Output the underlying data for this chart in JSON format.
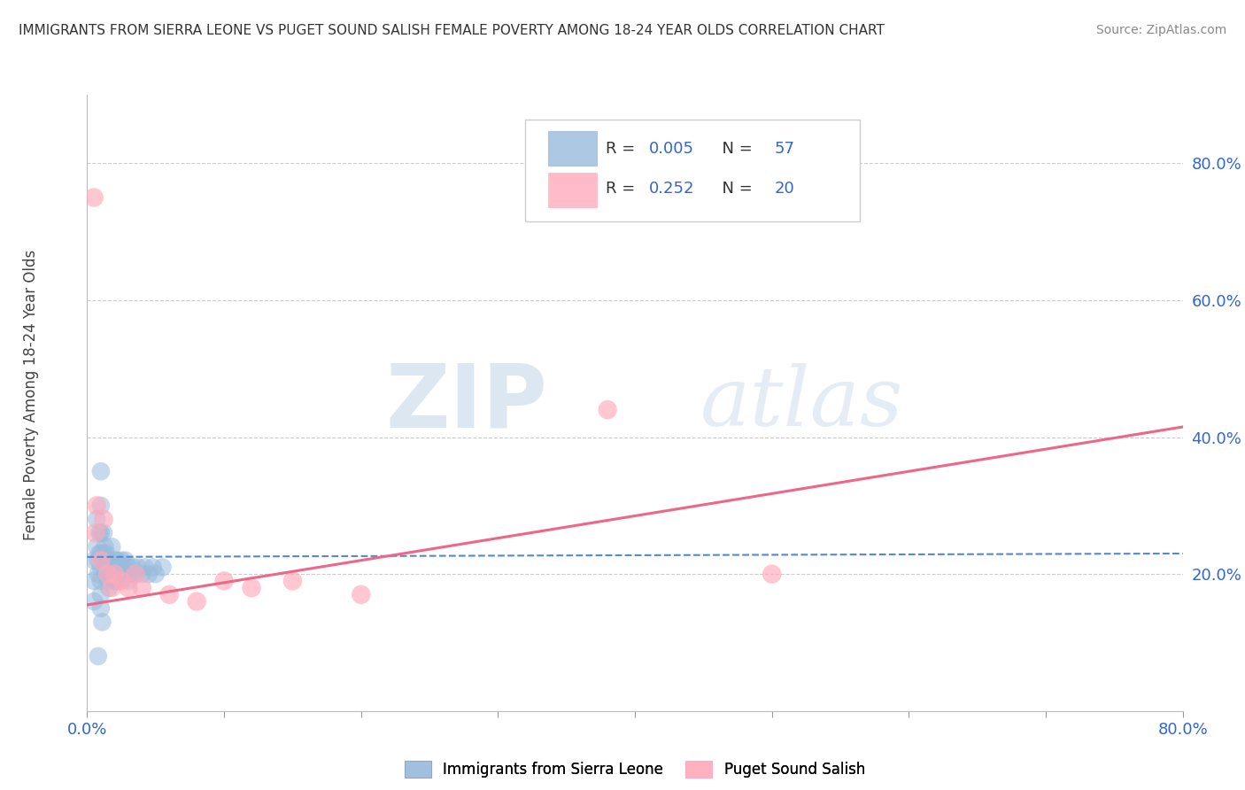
{
  "title": "IMMIGRANTS FROM SIERRA LEONE VS PUGET SOUND SALISH FEMALE POVERTY AMONG 18-24 YEAR OLDS CORRELATION CHART",
  "source": "Source: ZipAtlas.com",
  "ylabel": "Female Poverty Among 18-24 Year Olds",
  "xlim": [
    0.0,
    0.8
  ],
  "ylim": [
    0.0,
    0.9
  ],
  "ytick_positions": [
    0.2,
    0.4,
    0.6,
    0.8
  ],
  "ytick_labels": [
    "20.0%",
    "40.0%",
    "60.0%",
    "80.0%"
  ],
  "legend1_R": "0.005",
  "legend1_N": "57",
  "legend2_R": "0.252",
  "legend2_N": "20",
  "blue_color": "#99bbdd",
  "pink_color": "#ffaabb",
  "blue_line_color": "#5588cc",
  "pink_line_color": "#ee6688",
  "watermark_zip": "ZIP",
  "watermark_atlas": "atlas",
  "blue_scatter_x": [
    0.005,
    0.005,
    0.005,
    0.007,
    0.007,
    0.008,
    0.008,
    0.009,
    0.009,
    0.01,
    0.01,
    0.01,
    0.01,
    0.01,
    0.01,
    0.01,
    0.01,
    0.012,
    0.012,
    0.012,
    0.013,
    0.013,
    0.014,
    0.014,
    0.015,
    0.015,
    0.016,
    0.016,
    0.017,
    0.018,
    0.018,
    0.019,
    0.02,
    0.02,
    0.021,
    0.022,
    0.022,
    0.023,
    0.024,
    0.025,
    0.026,
    0.027,
    0.028,
    0.03,
    0.03,
    0.032,
    0.033,
    0.035,
    0.037,
    0.04,
    0.042,
    0.045,
    0.048,
    0.05,
    0.055,
    0.008,
    0.011
  ],
  "blue_scatter_y": [
    0.22,
    0.19,
    0.16,
    0.28,
    0.24,
    0.22,
    0.2,
    0.26,
    0.23,
    0.35,
    0.3,
    0.26,
    0.23,
    0.21,
    0.19,
    0.17,
    0.15,
    0.26,
    0.23,
    0.21,
    0.24,
    0.22,
    0.23,
    0.2,
    0.22,
    0.19,
    0.21,
    0.18,
    0.2,
    0.24,
    0.21,
    0.19,
    0.22,
    0.19,
    0.21,
    0.22,
    0.19,
    0.21,
    0.2,
    0.22,
    0.21,
    0.2,
    0.22,
    0.21,
    0.19,
    0.2,
    0.21,
    0.2,
    0.21,
    0.2,
    0.21,
    0.2,
    0.21,
    0.2,
    0.21,
    0.08,
    0.13
  ],
  "pink_scatter_x": [
    0.005,
    0.006,
    0.007,
    0.01,
    0.012,
    0.015,
    0.018,
    0.02,
    0.025,
    0.03,
    0.035,
    0.04,
    0.06,
    0.08,
    0.1,
    0.12,
    0.15,
    0.2,
    0.38,
    0.5
  ],
  "pink_scatter_y": [
    0.75,
    0.26,
    0.3,
    0.22,
    0.28,
    0.2,
    0.18,
    0.2,
    0.19,
    0.18,
    0.2,
    0.18,
    0.17,
    0.16,
    0.19,
    0.18,
    0.19,
    0.17,
    0.44,
    0.2
  ],
  "blue_trend_x": [
    0.0,
    0.8
  ],
  "blue_trend_y": [
    0.225,
    0.23
  ],
  "pink_trend_x": [
    0.0,
    0.8
  ],
  "pink_trend_y": [
    0.155,
    0.415
  ]
}
